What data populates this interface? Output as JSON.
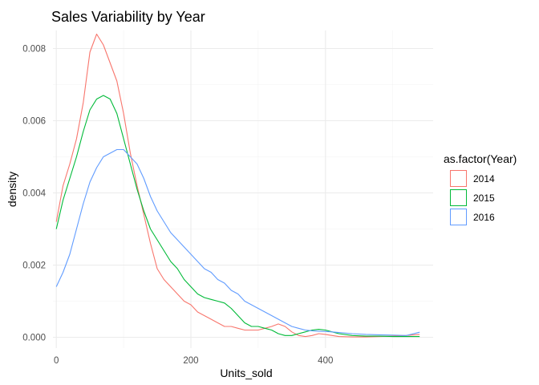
{
  "chart_data": {
    "type": "line",
    "title": "Sales Variability by Year",
    "xlabel": "Units_sold",
    "ylabel": "density",
    "xlim": [
      -5,
      560
    ],
    "ylim": [
      -0.0003,
      0.0085
    ],
    "x_ticks": [
      "0",
      "200",
      "400"
    ],
    "x_tick_values": [
      0,
      200,
      400
    ],
    "y_ticks": [
      "0.000",
      "0.002",
      "0.004",
      "0.006",
      "0.008"
    ],
    "y_tick_values": [
      0,
      0.002,
      0.004,
      0.006,
      0.008
    ],
    "grid": true,
    "legend": {
      "title": "as.factor(Year)",
      "position": "right"
    },
    "series": [
      {
        "name": "2014",
        "color": "#F8766D",
        "points": [
          [
            0,
            0.0032
          ],
          [
            10,
            0.0042
          ],
          [
            20,
            0.0048
          ],
          [
            30,
            0.0055
          ],
          [
            40,
            0.0065
          ],
          [
            50,
            0.0079
          ],
          [
            60,
            0.0084
          ],
          [
            70,
            0.0081
          ],
          [
            80,
            0.0076
          ],
          [
            90,
            0.0071
          ],
          [
            100,
            0.0062
          ],
          [
            110,
            0.0051
          ],
          [
            120,
            0.0042
          ],
          [
            130,
            0.0034
          ],
          [
            140,
            0.0026
          ],
          [
            150,
            0.0019
          ],
          [
            160,
            0.0016
          ],
          [
            170,
            0.0014
          ],
          [
            180,
            0.0012
          ],
          [
            190,
            0.001
          ],
          [
            200,
            0.0009
          ],
          [
            210,
            0.0007
          ],
          [
            220,
            0.0006
          ],
          [
            230,
            0.0005
          ],
          [
            240,
            0.0004
          ],
          [
            250,
            0.0003
          ],
          [
            260,
            0.0003
          ],
          [
            270,
            0.00025
          ],
          [
            280,
            0.0002
          ],
          [
            290,
            0.0002
          ],
          [
            300,
            0.0002
          ],
          [
            310,
            0.00025
          ],
          [
            320,
            0.0003
          ],
          [
            330,
            0.00037
          ],
          [
            340,
            0.0003
          ],
          [
            350,
            0.00015
          ],
          [
            360,
            5e-05
          ],
          [
            370,
            2e-05
          ],
          [
            380,
            5e-05
          ],
          [
            390,
            0.0001
          ],
          [
            400,
            8e-05
          ],
          [
            410,
            5e-05
          ],
          [
            420,
            2e-05
          ],
          [
            440,
            1e-05
          ],
          [
            460,
            1e-05
          ],
          [
            480,
            2e-05
          ],
          [
            500,
            3e-05
          ],
          [
            520,
            5e-05
          ],
          [
            540,
            8e-05
          ]
        ]
      },
      {
        "name": "2015",
        "color": "#00BA38",
        "points": [
          [
            0,
            0.003
          ],
          [
            10,
            0.0038
          ],
          [
            20,
            0.0044
          ],
          [
            30,
            0.005
          ],
          [
            40,
            0.0057
          ],
          [
            50,
            0.0063
          ],
          [
            60,
            0.0066
          ],
          [
            70,
            0.0067
          ],
          [
            80,
            0.0066
          ],
          [
            90,
            0.0062
          ],
          [
            100,
            0.0055
          ],
          [
            110,
            0.0048
          ],
          [
            120,
            0.0041
          ],
          [
            130,
            0.0035
          ],
          [
            140,
            0.003
          ],
          [
            150,
            0.0027
          ],
          [
            160,
            0.0024
          ],
          [
            170,
            0.0021
          ],
          [
            180,
            0.0019
          ],
          [
            190,
            0.0016
          ],
          [
            200,
            0.0014
          ],
          [
            210,
            0.0012
          ],
          [
            220,
            0.0011
          ],
          [
            230,
            0.00105
          ],
          [
            240,
            0.001
          ],
          [
            250,
            0.00095
          ],
          [
            260,
            0.0008
          ],
          [
            270,
            0.0006
          ],
          [
            280,
            0.0004
          ],
          [
            290,
            0.0003
          ],
          [
            300,
            0.0003
          ],
          [
            310,
            0.00025
          ],
          [
            320,
            0.0002
          ],
          [
            330,
            0.0001
          ],
          [
            340,
            5e-05
          ],
          [
            350,
            5e-05
          ],
          [
            360,
            0.0001
          ],
          [
            370,
            0.00015
          ],
          [
            380,
            0.0002
          ],
          [
            390,
            0.00022
          ],
          [
            400,
            0.0002
          ],
          [
            410,
            0.00015
          ],
          [
            420,
            0.0001
          ],
          [
            440,
            5e-05
          ],
          [
            460,
            3e-05
          ],
          [
            480,
            3e-05
          ],
          [
            500,
            2e-05
          ],
          [
            520,
            2e-05
          ],
          [
            540,
            2e-05
          ]
        ]
      },
      {
        "name": "2016",
        "color": "#619CFF",
        "points": [
          [
            0,
            0.0014
          ],
          [
            10,
            0.0018
          ],
          [
            20,
            0.0023
          ],
          [
            30,
            0.003
          ],
          [
            40,
            0.0037
          ],
          [
            50,
            0.0043
          ],
          [
            60,
            0.0047
          ],
          [
            70,
            0.005
          ],
          [
            80,
            0.0051
          ],
          [
            90,
            0.0052
          ],
          [
            100,
            0.0052
          ],
          [
            110,
            0.005
          ],
          [
            120,
            0.0048
          ],
          [
            130,
            0.0044
          ],
          [
            140,
            0.0039
          ],
          [
            150,
            0.0035
          ],
          [
            160,
            0.0032
          ],
          [
            170,
            0.0029
          ],
          [
            180,
            0.0027
          ],
          [
            190,
            0.0025
          ],
          [
            200,
            0.0023
          ],
          [
            210,
            0.0021
          ],
          [
            220,
            0.0019
          ],
          [
            230,
            0.0018
          ],
          [
            240,
            0.0016
          ],
          [
            250,
            0.0015
          ],
          [
            260,
            0.0013
          ],
          [
            270,
            0.0012
          ],
          [
            280,
            0.001
          ],
          [
            290,
            0.0009
          ],
          [
            300,
            0.0008
          ],
          [
            310,
            0.0007
          ],
          [
            320,
            0.0006
          ],
          [
            330,
            0.0005
          ],
          [
            340,
            0.0004
          ],
          [
            350,
            0.0003
          ],
          [
            360,
            0.00025
          ],
          [
            370,
            0.0002
          ],
          [
            380,
            0.00018
          ],
          [
            390,
            0.00017
          ],
          [
            400,
            0.00016
          ],
          [
            410,
            0.00015
          ],
          [
            420,
            0.00013
          ],
          [
            440,
            0.0001
          ],
          [
            460,
            8e-05
          ],
          [
            480,
            7e-05
          ],
          [
            500,
            6e-05
          ],
          [
            520,
            5e-05
          ],
          [
            540,
            0.00014
          ]
        ]
      }
    ]
  }
}
